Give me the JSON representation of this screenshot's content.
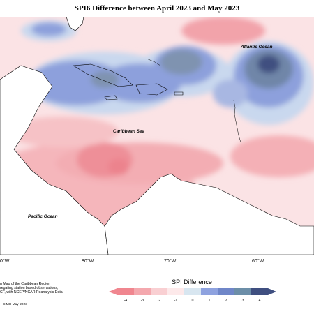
{
  "title": "SPI6 Difference between April 2023 and May 2023",
  "labels": {
    "atlantic": "Atlantic Ocean",
    "caribbean": "Caribbean Sea",
    "pacific": "Pacific Ocean"
  },
  "longitudes": [
    "0°W",
    "80°W",
    "70°W",
    "60°W"
  ],
  "description": [
    "n Map of the Caribbean Region",
    "regating station based observations,",
    "CF, with NCEP/NCAR Reanalysis Data."
  ],
  "credit": "CIMH May-2023",
  "legend": {
    "title": "SPI Difference",
    "ticks": [
      "-4",
      "-3",
      "-2",
      "-1",
      "0",
      "1",
      "2",
      "3",
      "4"
    ],
    "colors": [
      "#f0868f",
      "#f4a8ae",
      "#f9cfd2",
      "#fde9ea",
      "#d8e6f0",
      "#8ea2df",
      "#6f86c8",
      "#6c8ea8",
      "#3f4f80"
    ]
  }
}
